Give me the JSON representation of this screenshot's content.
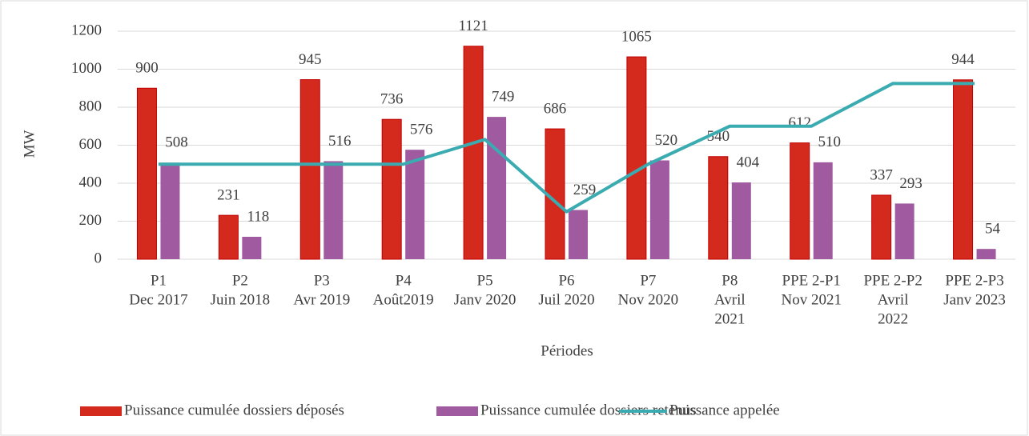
{
  "chart_data": {
    "type": "bar_line",
    "ylabel": "MW",
    "xlabel": "Périodes",
    "categories": [
      [
        "P1",
        "Dec 2017"
      ],
      [
        "P2",
        "Juin 2018"
      ],
      [
        "P3",
        "Avr 2019"
      ],
      [
        "P4",
        "Août2019"
      ],
      [
        "P5",
        "Janv 2020"
      ],
      [
        "P6",
        "Juil 2020"
      ],
      [
        "P7",
        "Nov 2020"
      ],
      [
        "P8",
        "Avril",
        "2021"
      ],
      [
        "PPE 2-P1",
        "Nov 2021"
      ],
      [
        "PPE 2-P2",
        "Avril",
        "2022"
      ],
      [
        "PPE 2-P3",
        "Janv 2023"
      ]
    ],
    "series": [
      {
        "name": "Puissance cumulée dossiers déposés",
        "color": "#d42a1e",
        "kind": "bar",
        "values": [
          900,
          231,
          945,
          736,
          1121,
          686,
          1065,
          540,
          612,
          337,
          944
        ]
      },
      {
        "name": "Puissance cumulée dossiers retenus",
        "color": "#a05aa0",
        "kind": "bar",
        "values": [
          508,
          118,
          516,
          576,
          749,
          259,
          520,
          404,
          510,
          293,
          54
        ]
      },
      {
        "name": "Puissance appelée",
        "color": "#3aabb0",
        "kind": "line",
        "values": [
          500,
          500,
          500,
          500,
          630,
          250,
          500,
          700,
          700,
          925,
          925
        ]
      }
    ],
    "ylim": [
      0,
      1200
    ],
    "yticks": [
      0,
      200,
      400,
      600,
      800,
      1000,
      1200
    ],
    "grid": true,
    "legend": "bottom"
  }
}
